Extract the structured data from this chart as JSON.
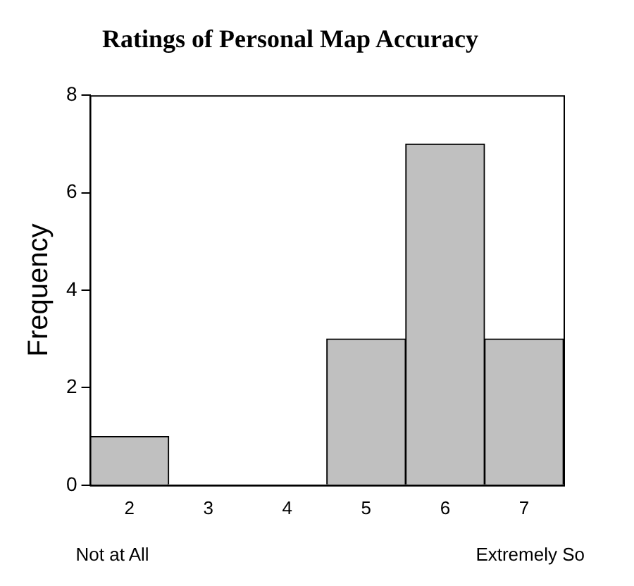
{
  "chart_data": {
    "type": "bar",
    "title": "Ratings of Personal Map Accuracy",
    "ylabel": "Frequency",
    "categories": [
      "2",
      "3",
      "4",
      "5",
      "6",
      "7"
    ],
    "values": [
      1,
      0,
      0,
      3,
      7,
      3
    ],
    "color": "#c0c0c0",
    "ylim": [
      0,
      8
    ],
    "yticks": [
      0,
      2,
      4,
      6,
      8
    ],
    "grid": false,
    "legend": false,
    "annotations": [
      "Not at All",
      "Extremely So"
    ]
  }
}
